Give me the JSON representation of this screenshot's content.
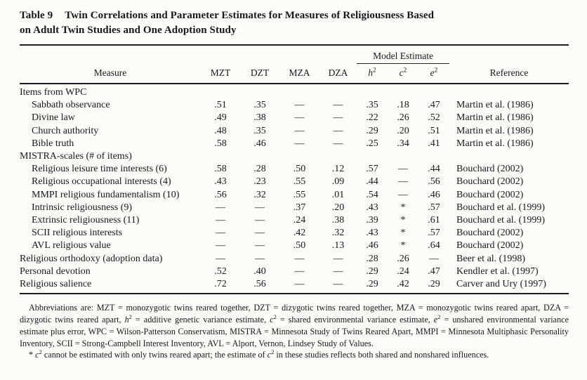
{
  "title": {
    "label": "Table 9",
    "line1": "Twin Correlations and Parameter Estimates for Measures of Religiousness Based",
    "line2": "on Adult Twin Studies and One Adoption Study"
  },
  "table": {
    "spanner_label": "Model Estimate",
    "columns": {
      "measure": "Measure",
      "twins": [
        "MZT",
        "DZT",
        "MZA",
        "DZA"
      ],
      "model": [
        {
          "base": "h",
          "sup": "2"
        },
        {
          "base": "c",
          "sup": "2"
        },
        {
          "base": "e",
          "sup": "2"
        }
      ],
      "reference": "Reference"
    },
    "rows": [
      {
        "label": "Items from WPC",
        "group": true,
        "values": [
          "",
          "",
          "",
          "",
          "",
          "",
          ""
        ],
        "reference": ""
      },
      {
        "label": "Sabbath observance",
        "indent": true,
        "values": [
          ".51",
          ".35",
          "—",
          "—",
          ".35",
          ".18",
          ".47"
        ],
        "reference": "Martin et al. (1986)"
      },
      {
        "label": "Divine law",
        "indent": true,
        "values": [
          ".49",
          ".38",
          "—",
          "—",
          ".22",
          ".26",
          ".52"
        ],
        "reference": "Martin et al. (1986)"
      },
      {
        "label": "Church authority",
        "indent": true,
        "values": [
          ".48",
          ".35",
          "—",
          "—",
          ".29",
          ".20",
          ".51"
        ],
        "reference": "Martin et al. (1986)"
      },
      {
        "label": "Bible truth",
        "indent": true,
        "values": [
          ".58",
          ".46",
          "—",
          "—",
          ".25",
          ".34",
          ".41"
        ],
        "reference": "Martin et al. (1986)"
      },
      {
        "label": "MISTRA-scales (# of items)",
        "group": true,
        "values": [
          "",
          "",
          "",
          "",
          "",
          "",
          ""
        ],
        "reference": ""
      },
      {
        "label": "Religious leisure time interests (6)",
        "indent": true,
        "values": [
          ".58",
          ".28",
          ".50",
          ".12",
          ".57",
          "—",
          ".44"
        ],
        "reference": "Bouchard (2002)"
      },
      {
        "label": "Religious occupational interests (4)",
        "indent": true,
        "values": [
          ".43",
          ".23",
          ".55",
          ".09",
          ".44",
          "—",
          ".56"
        ],
        "reference": "Bouchard (2002)"
      },
      {
        "label": "MMPI religious fundamentalism (10)",
        "indent": true,
        "values": [
          ".56",
          ".32",
          ".55",
          ".01",
          ".54",
          "—",
          ".46"
        ],
        "reference": "Bouchard (2002)"
      },
      {
        "label": "Intrinsic religiousness (9)",
        "indent": true,
        "values": [
          "—",
          "—",
          ".37",
          ".20",
          ".43",
          "*",
          ".57"
        ],
        "reference": "Bouchard et al. (1999)"
      },
      {
        "label": "Extrinsic religiousness (11)",
        "indent": true,
        "values": [
          "—",
          "—",
          ".24",
          ".38",
          ".39",
          "*",
          ".61"
        ],
        "reference": "Bouchard et al. (1999)"
      },
      {
        "label": "SCII religious interests",
        "indent": true,
        "values": [
          "—",
          "—",
          ".42",
          ".32",
          ".43",
          "*",
          ".57"
        ],
        "reference": "Bouchard (2002)"
      },
      {
        "label": "AVL religious value",
        "indent": true,
        "values": [
          "—",
          "—",
          ".50",
          ".13",
          ".46",
          "*",
          ".64"
        ],
        "reference": "Bouchard (2002)"
      },
      {
        "label": "Religious orthodoxy (adoption data)",
        "values": [
          "—",
          "—",
          "—",
          "—",
          ".28",
          ".26",
          "—"
        ],
        "reference": "Beer et al. (1998)"
      },
      {
        "label": "Personal devotion",
        "values": [
          ".52",
          ".40",
          "—",
          "—",
          ".29",
          ".24",
          ".47"
        ],
        "reference": "Kendler et al. (1997)"
      },
      {
        "label": "Religious salience",
        "values": [
          ".72",
          ".56",
          "—",
          "—",
          ".29",
          ".42",
          ".29"
        ],
        "reference": "Carver and Ury (1997)"
      }
    ]
  },
  "footnotes": {
    "paragraphs": [
      [
        {
          "text": "Abbreviations are: MZT = monozygotic twins reared together, DZT = dizygotic twins reared together, MZA = monozygotic twins reared apart, DZA = dizygotic twins reared apart, ",
          "style": "normal"
        },
        {
          "text": "h",
          "style": "var"
        },
        {
          "text": "2",
          "style": "sup"
        },
        {
          "text": " = additive genetic variance estimate, ",
          "style": "normal"
        },
        {
          "text": "c",
          "style": "var"
        },
        {
          "text": "2",
          "style": "sup"
        },
        {
          "text": " = shared environmental variance estimate, ",
          "style": "normal"
        },
        {
          "text": "e",
          "style": "var"
        },
        {
          "text": "2",
          "style": "sup"
        },
        {
          "text": " = unshared environmental variance estimate plus error, WPC = Wilson-Patterson Conservatism, MISTRA = Minnesota Study of Twins Reared Apart, MMPI = Minnesota Multiphasic Personality Inventory, SCII = Strong-Campbell Interest Inventory, AVL = Alport, Vernon, Lindsey Study of Values.",
          "style": "normal"
        }
      ],
      [
        {
          "text": "* ",
          "style": "normal"
        },
        {
          "text": "c",
          "style": "var"
        },
        {
          "text": "2",
          "style": "sup"
        },
        {
          "text": " cannot be estimated with only twins reared apart; the estimate of ",
          "style": "normal"
        },
        {
          "text": "c",
          "style": "var"
        },
        {
          "text": "2",
          "style": "sup"
        },
        {
          "text": " in these studies reflects both shared and nonshared influences.",
          "style": "normal"
        }
      ]
    ]
  }
}
